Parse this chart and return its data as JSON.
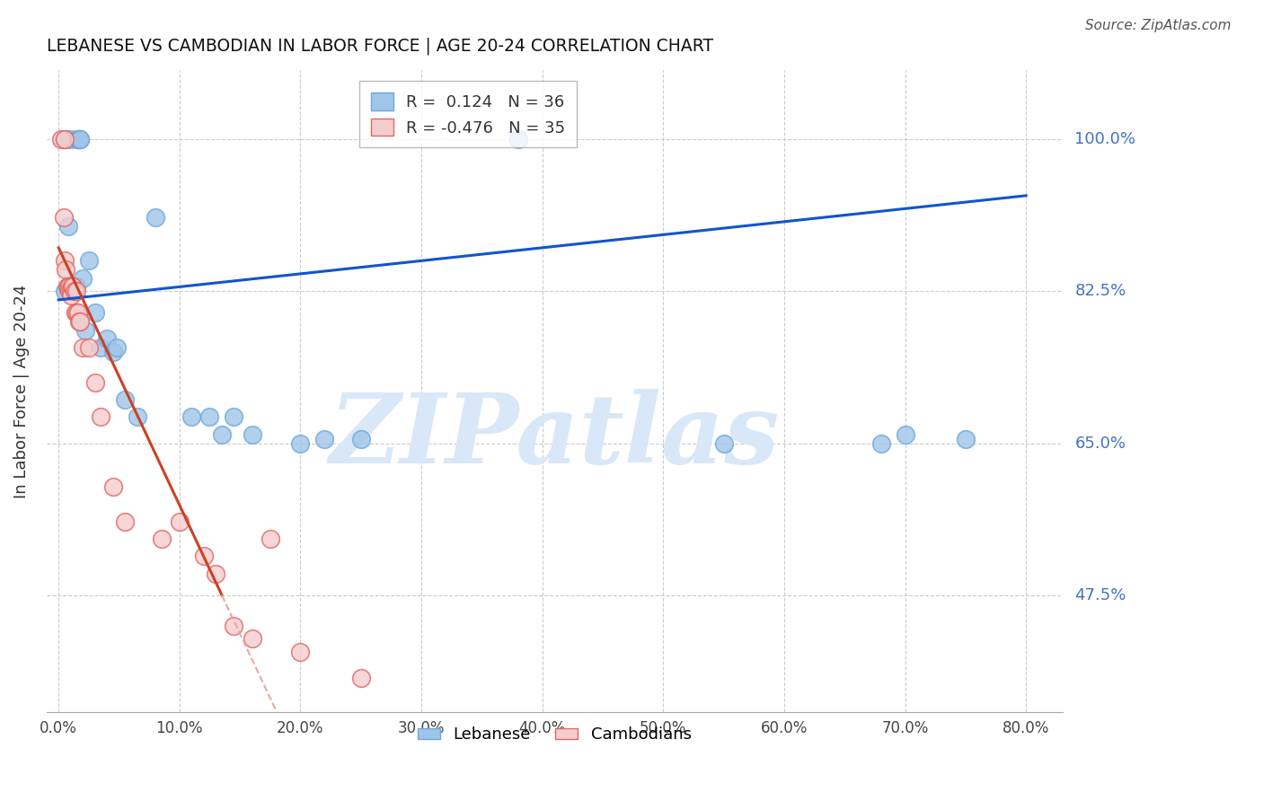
{
  "title": "LEBANESE VS CAMBODIAN IN LABOR FORCE | AGE 20-24 CORRELATION CHART",
  "source": "Source: ZipAtlas.com",
  "ylabel": "In Labor Force | Age 20-24",
  "x_tick_labels": [
    "0.0%",
    "10.0%",
    "20.0%",
    "30.0%",
    "40.0%",
    "50.0%",
    "60.0%",
    "70.0%",
    "80.0%"
  ],
  "x_tick_vals": [
    0,
    10,
    20,
    30,
    40,
    50,
    60,
    70,
    80
  ],
  "y_tick_labels": [
    "47.5%",
    "65.0%",
    "82.5%",
    "100.0%"
  ],
  "y_tick_vals": [
    47.5,
    65.0,
    82.5,
    100.0
  ],
  "xlim": [
    -1.0,
    83.0
  ],
  "ylim": [
    34.0,
    108.0
  ],
  "blue_R": 0.124,
  "blue_N": 36,
  "pink_R": -0.476,
  "pink_N": 35,
  "blue_scatter_color": "#9fc5e8",
  "blue_edge_color": "#6fa8dc",
  "pink_scatter_color": "#f4cccc",
  "pink_edge_color": "#e06666",
  "blue_line_color": "#1155cc",
  "pink_line_color": "#cc4125",
  "watermark_color": "#d9e8f8",
  "blue_line_x0": 0,
  "blue_line_y0": 81.5,
  "blue_line_x1": 80,
  "blue_line_y1": 93.5,
  "pink_line_x0": 0,
  "pink_line_y0": 87.5,
  "pink_line_x1": 13.5,
  "pink_line_y1": 47.5,
  "pink_dash_x0": 13.5,
  "pink_dash_x1": 25.0,
  "blue_scatter_x": [
    0.4,
    0.5,
    0.6,
    0.8,
    1.0,
    1.5,
    1.6,
    1.65,
    1.7,
    1.7,
    1.75,
    1.8,
    2.0,
    2.2,
    2.5,
    3.0,
    3.5,
    4.0,
    4.5,
    4.8,
    5.5,
    6.5,
    8.0,
    11.0,
    12.5,
    13.5,
    14.5,
    16.0,
    20.0,
    22.0,
    25.0,
    38.0,
    55.0,
    68.0,
    70.0,
    75.0
  ],
  "blue_scatter_y": [
    100.0,
    82.5,
    100.0,
    90.0,
    100.0,
    83.0,
    100.0,
    100.0,
    100.0,
    100.0,
    100.0,
    100.0,
    84.0,
    78.0,
    86.0,
    80.0,
    76.0,
    77.0,
    75.5,
    76.0,
    70.0,
    68.0,
    91.0,
    68.0,
    68.0,
    66.0,
    68.0,
    66.0,
    65.0,
    65.5,
    65.5,
    100.0,
    65.0,
    65.0,
    66.0,
    65.5
  ],
  "pink_scatter_x": [
    0.2,
    0.4,
    0.5,
    0.5,
    0.6,
    0.7,
    0.8,
    0.9,
    0.9,
    1.0,
    1.0,
    1.1,
    1.2,
    1.3,
    1.4,
    1.5,
    1.5,
    1.6,
    1.7,
    1.8,
    2.0,
    2.5,
    3.0,
    3.5,
    4.5,
    5.5,
    8.5,
    10.0,
    12.0,
    13.0,
    14.5,
    16.0,
    17.5,
    20.0,
    25.0
  ],
  "pink_scatter_y": [
    100.0,
    91.0,
    86.0,
    100.0,
    85.0,
    83.0,
    83.0,
    83.0,
    82.5,
    82.5,
    82.0,
    83.0,
    83.0,
    82.5,
    80.0,
    82.5,
    80.0,
    80.0,
    79.0,
    79.0,
    76.0,
    76.0,
    72.0,
    68.0,
    60.0,
    56.0,
    54.0,
    56.0,
    52.0,
    50.0,
    44.0,
    42.5,
    54.0,
    41.0,
    38.0
  ]
}
